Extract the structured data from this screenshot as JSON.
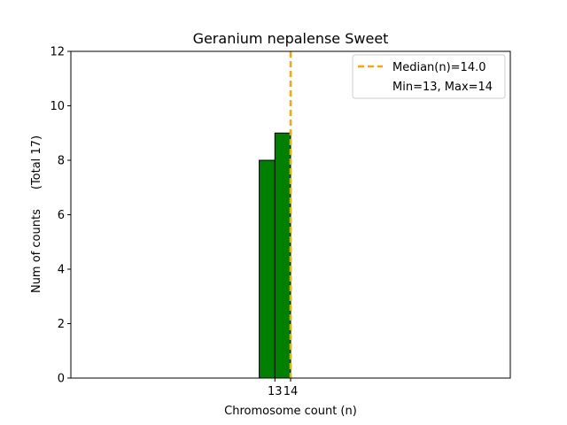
{
  "chart_data": {
    "type": "bar",
    "title": "Geranium nepalense Sweet",
    "xlabel": "Chromosome count (n)",
    "ylabel": "Num of counts",
    "ylabel_total": "(Total 17)",
    "categories": [
      "13",
      "14"
    ],
    "x": [
      13,
      14
    ],
    "values": [
      8,
      9
    ],
    "ylim": [
      0,
      12
    ],
    "yticks": [
      "0",
      "2",
      "4",
      "6",
      "8",
      "10",
      "12"
    ],
    "grid": false,
    "median_line": {
      "x": 14.0,
      "color": "#FFA500"
    },
    "legend": {
      "placement": "top-right",
      "entries": [
        "Median(n)=14.0",
        "Min=13, Max=14"
      ]
    },
    "bar_color": "#008000",
    "bar_edge_color": "#000000"
  }
}
